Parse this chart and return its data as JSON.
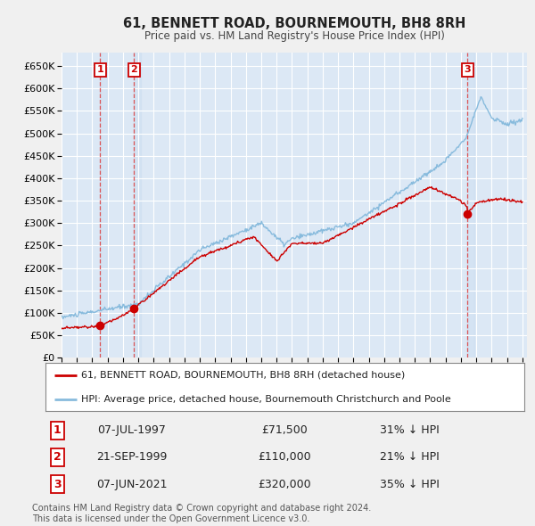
{
  "title": "61, BENNETT ROAD, BOURNEMOUTH, BH8 8RH",
  "subtitle": "Price paid vs. HM Land Registry's House Price Index (HPI)",
  "background_color": "#f0f0f0",
  "plot_bg_color": "#dce8f5",
  "grid_color": "#ffffff",
  "sale_color": "#cc0000",
  "hpi_color": "#88bbdd",
  "dashed_line_color": "#dd4444",
  "band_color": "#c0d8f0",
  "ylim": [
    0,
    680000
  ],
  "yticks": [
    0,
    50000,
    100000,
    150000,
    200000,
    250000,
    300000,
    350000,
    400000,
    450000,
    500000,
    550000,
    600000,
    650000
  ],
  "legend_label_red": "61, BENNETT ROAD, BOURNEMOUTH, BH8 8RH (detached house)",
  "legend_label_blue": "HPI: Average price, detached house, Bournemouth Christchurch and Poole",
  "table_rows": [
    [
      "1",
      "07-JUL-1997",
      "£71,500",
      "31% ↓ HPI"
    ],
    [
      "2",
      "21-SEP-1999",
      "£110,000",
      "21% ↓ HPI"
    ],
    [
      "3",
      "07-JUN-2021",
      "£320,000",
      "35% ↓ HPI"
    ]
  ],
  "footnote1": "Contains HM Land Registry data © Crown copyright and database right 2024.",
  "footnote2": "This data is licensed under the Open Government Licence v3.0.",
  "sale_years": [
    1997.52,
    1999.72,
    2021.43
  ],
  "sale_prices": [
    71500,
    110000,
    320000
  ],
  "sale_labels": [
    "1",
    "2",
    "3"
  ]
}
